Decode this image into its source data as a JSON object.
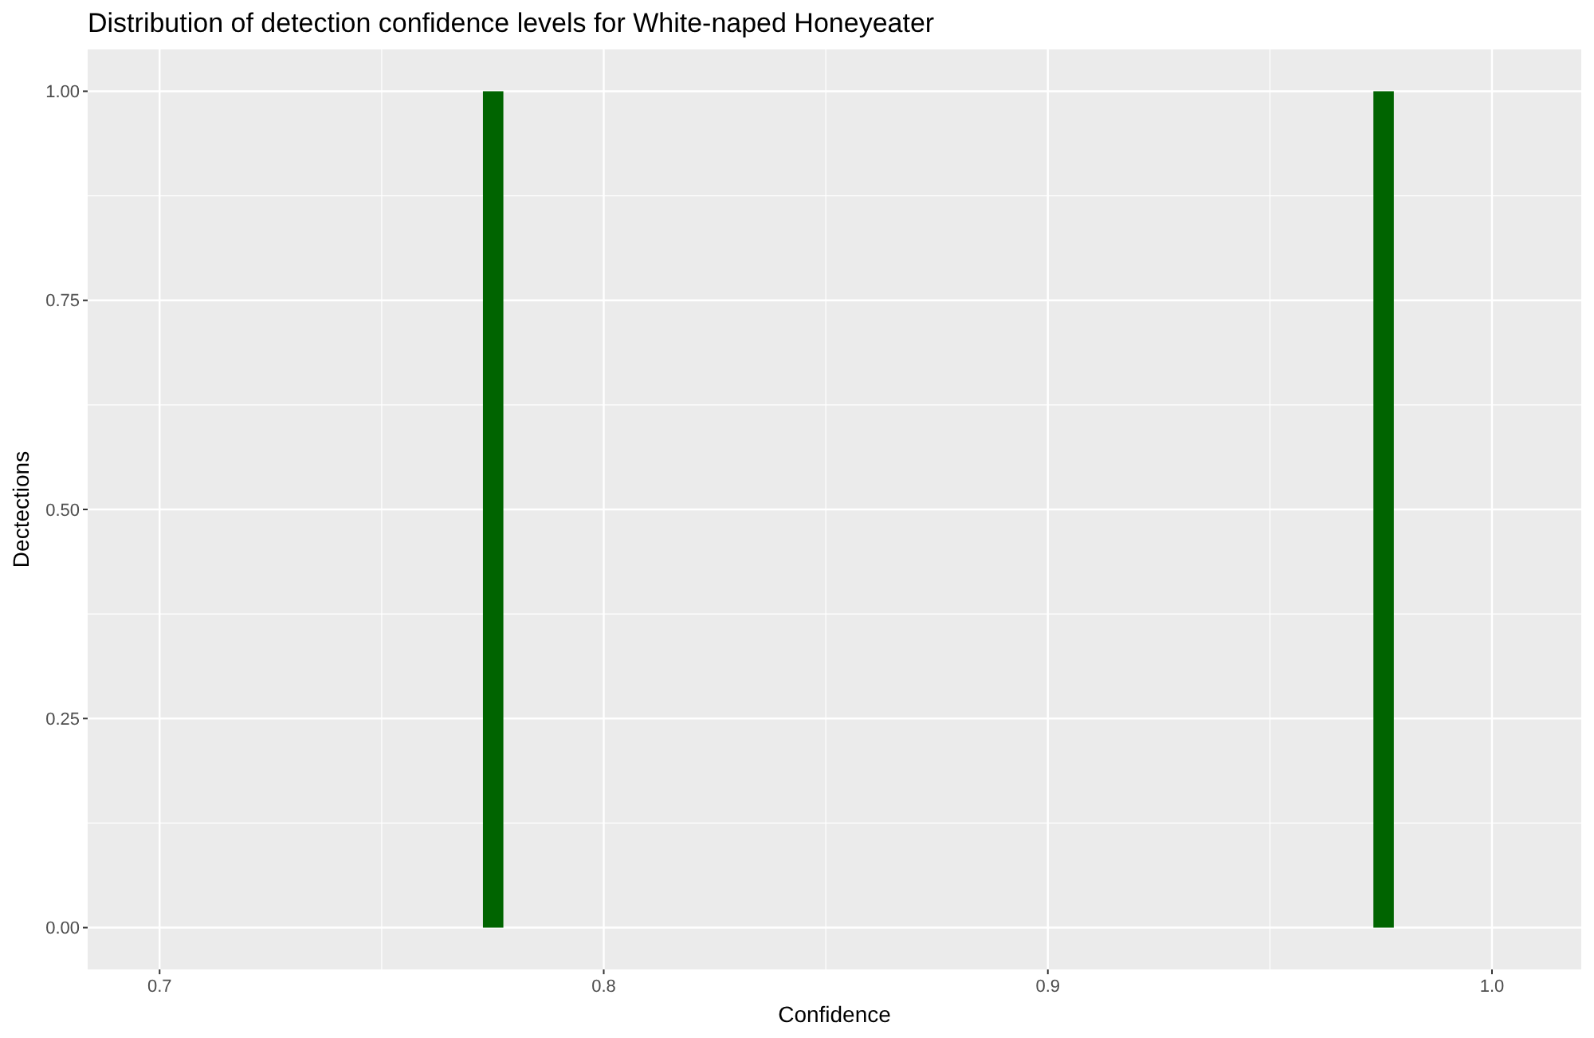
{
  "chart_data": {
    "type": "histogram",
    "title": "Distribution of detection confidence levels for White-naped Honeyeater",
    "xlabel": "Confidence",
    "ylabel": "Dectections",
    "bins": [
      0.7728,
      0.7774,
      0.9733,
      0.9779
    ],
    "values": [
      1,
      0,
      1
    ],
    "color": "#006400",
    "xlim": [
      0.6838,
      1.0201
    ],
    "xticks": [
      0.7,
      0.8,
      0.9,
      {
        "value": 1,
        "label": "1.0"
      }
    ],
    "ylim": [
      -0.05,
      1.05
    ],
    "yticks": [
      {
        "value": 0,
        "label": "0.00"
      },
      {
        "value": 0.25,
        "label": "0.25"
      },
      {
        "value": 0.5,
        "label": "0.50"
      },
      {
        "value": 0.75,
        "label": "0.75"
      },
      {
        "value": 1,
        "label": "1.00"
      }
    ],
    "grid": true
  }
}
